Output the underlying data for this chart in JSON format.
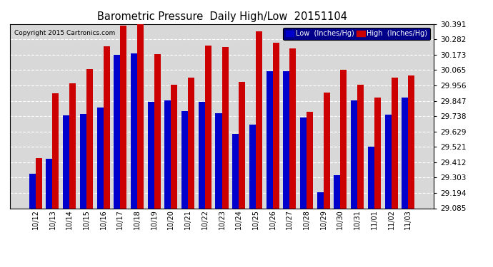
{
  "title": "Barometric Pressure  Daily High/Low  20151104",
  "copyright": "Copyright 2015 Cartronics.com",
  "categories": [
    "10/12",
    "10/13",
    "10/14",
    "10/15",
    "10/16",
    "10/17",
    "10/18",
    "10/19",
    "10/20",
    "10/21",
    "10/22",
    "10/23",
    "10/24",
    "10/25",
    "10/26",
    "10/27",
    "10/28",
    "10/29",
    "10/30",
    "10/31",
    "11/01",
    "11/02",
    "11/03"
  ],
  "low_values": [
    29.33,
    29.435,
    29.745,
    29.755,
    29.8,
    30.175,
    30.185,
    29.84,
    29.848,
    29.775,
    29.84,
    29.76,
    29.61,
    29.68,
    30.055,
    30.055,
    29.73,
    29.2,
    29.32,
    29.848,
    29.52,
    29.748,
    29.868
  ],
  "high_values": [
    29.44,
    29.9,
    29.97,
    30.07,
    30.235,
    30.38,
    30.395,
    30.18,
    29.96,
    30.01,
    30.24,
    30.23,
    29.98,
    30.34,
    30.26,
    30.22,
    29.77,
    29.905,
    30.065,
    29.96,
    29.87,
    30.01,
    30.025
  ],
  "low_color": "#0000cc",
  "high_color": "#cc0000",
  "plot_bg_color": "#d8d8d8",
  "fig_bg_color": "#ffffff",
  "grid_color": "#ffffff",
  "ylim_min": 29.085,
  "ylim_max": 30.391,
  "yticks": [
    29.085,
    29.194,
    29.303,
    29.412,
    29.521,
    29.629,
    29.738,
    29.847,
    29.956,
    30.065,
    30.173,
    30.282,
    30.391
  ],
  "legend_low_label": "Low  (Inches/Hg)",
  "legend_high_label": "High  (Inches/Hg)",
  "bar_width": 0.38
}
